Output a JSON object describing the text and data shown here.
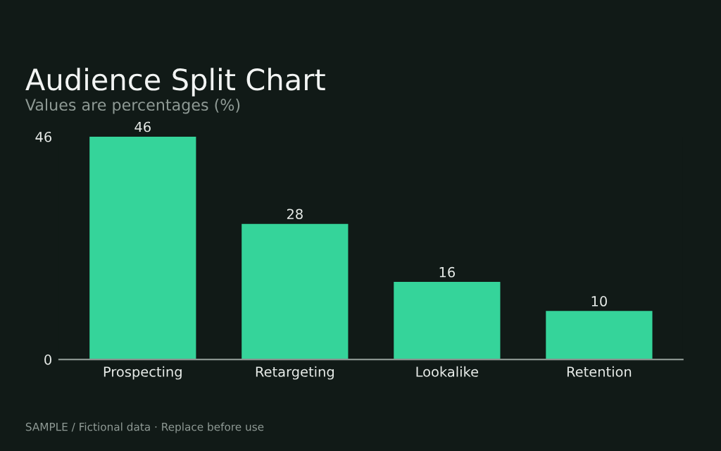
{
  "chart_data": {
    "type": "bar",
    "title": "Audience Split Chart",
    "subtitle": "Values are percentages (%)",
    "categories": [
      "Prospecting",
      "Retargeting",
      "Lookalike",
      "Retention"
    ],
    "values": [
      46,
      28,
      16,
      10
    ],
    "color": "#35d49a",
    "ylim": [
      0,
      46
    ],
    "yticks": [
      0,
      46
    ],
    "grid": false,
    "data_labels": true,
    "legend": false,
    "annotations": [
      "SAMPLE / Fictional data · Replace before use"
    ]
  }
}
